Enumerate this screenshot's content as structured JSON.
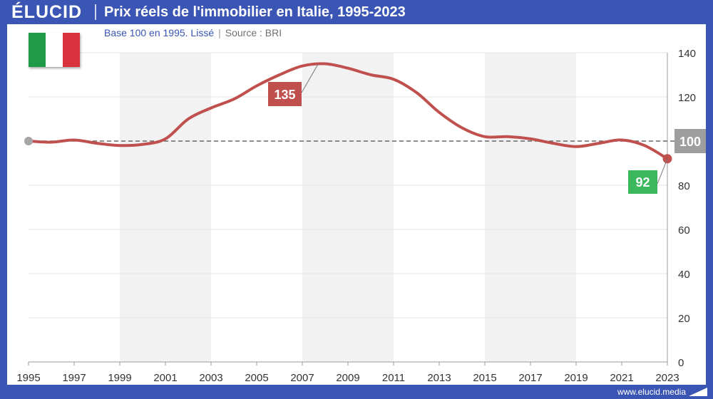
{
  "brand": "ÉLUCID",
  "title": "Prix réels de l'immobilier en Italie, 1995-2023",
  "subtitle": {
    "main": "Base 100 en 1995. Lissé",
    "separator": "|",
    "source": "Source : BRI"
  },
  "flag": {
    "name": "italy-flag",
    "colors": [
      "#1f9a48",
      "#ffffff",
      "#d8323d"
    ]
  },
  "footer": {
    "url": "www.elucid.media"
  },
  "colors": {
    "line": "#c0504d",
    "baseline": "#666666",
    "band": "#f2f2f2",
    "peak_label_bg": "#c0504d",
    "end_label_bg": "#3cb85c",
    "base_label_bg": "#9e9e9e",
    "start_dot": "#a6a6a6",
    "axis_text": "#333333"
  },
  "chart_data": {
    "type": "line",
    "title": "Prix réels de l'immobilier en Italie, 1995-2023",
    "xlabel": "",
    "ylabel": "",
    "xlim": [
      1995,
      2023
    ],
    "ylim": [
      0,
      140
    ],
    "x_ticks": [
      "1995",
      "1997",
      "1999",
      "2001",
      "2003",
      "2005",
      "2007",
      "2009",
      "2011",
      "2013",
      "2015",
      "2017",
      "2019",
      "2021",
      "2023"
    ],
    "y_ticks": [
      0,
      20,
      40,
      60,
      80,
      100,
      120,
      140
    ],
    "shaded_periods": [
      [
        1999,
        2003
      ],
      [
        2007,
        2011
      ],
      [
        2015,
        2019
      ]
    ],
    "reference_line": {
      "value": 100,
      "label": "100"
    },
    "series": [
      {
        "name": "Prix réels de l'immobilier (Italie)",
        "x": [
          1995,
          1996,
          1997,
          1998,
          1999,
          2000,
          2001,
          2002,
          2003,
          2004,
          2005,
          2006,
          2007,
          2008,
          2009,
          2010,
          2011,
          2012,
          2013,
          2014,
          2015,
          2016,
          2017,
          2018,
          2019,
          2020,
          2021,
          2022,
          2023
        ],
        "values": [
          100,
          99.5,
          100.5,
          99,
          98,
          98.5,
          101,
          110,
          115,
          119,
          125,
          130,
          134,
          135,
          133,
          130,
          128,
          122,
          113,
          106,
          102,
          102,
          101,
          99,
          97.5,
          99,
          100.5,
          98,
          92
        ]
      }
    ],
    "annotations": [
      {
        "label": "135",
        "x": 2007.7,
        "y": 135
      },
      {
        "label": "92",
        "x": 2023,
        "y": 92
      }
    ]
  }
}
